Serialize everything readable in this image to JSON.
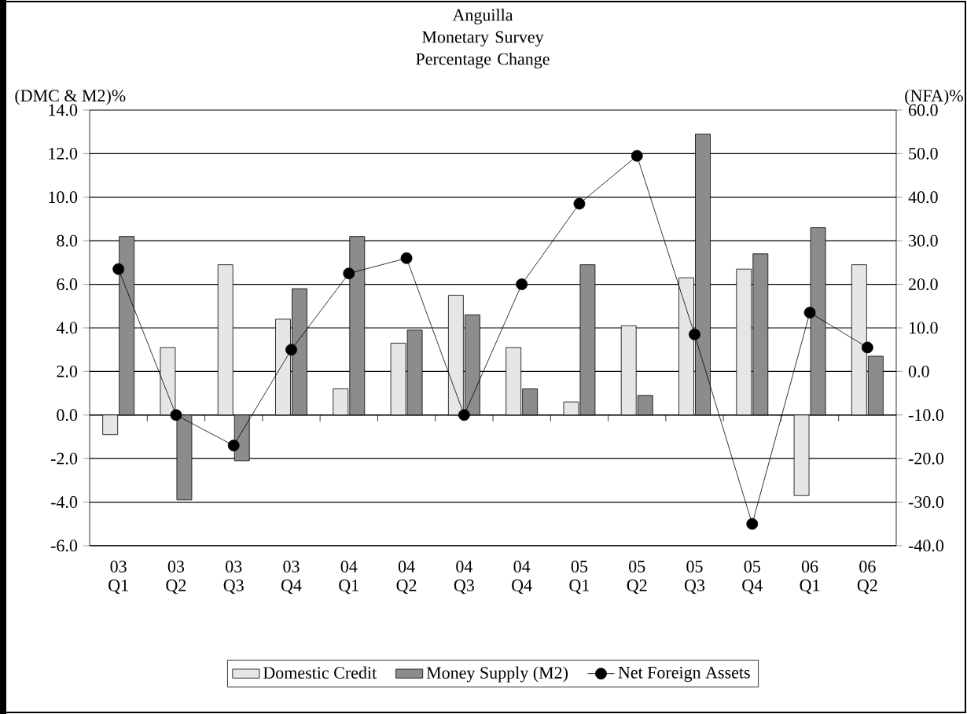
{
  "chart_data": {
    "type": "bar",
    "title": "Anguilla",
    "subtitle": "Monetary Survey Percentage Change",
    "ylabel": "(DMC & M2)%",
    "y2label": "(NFA)%",
    "categories": [
      "03 Q1",
      "03 Q2",
      "03 Q3",
      "03 Q4",
      "04 Q1",
      "04 Q2",
      "04 Q3",
      "04 Q4",
      "05 Q1",
      "05 Q2",
      "05 Q3",
      "05 Q4",
      "06 Q1",
      "06 Q2"
    ],
    "series": [
      {
        "name": "Domestic Credit",
        "color": "#e6e6e6",
        "values": [
          -0.9,
          3.1,
          6.9,
          4.4,
          1.2,
          3.3,
          5.5,
          3.1,
          0.6,
          4.1,
          6.3,
          6.7,
          -3.7,
          6.9
        ]
      },
      {
        "name": "Money Supply (M2)",
        "color": "#8c8c8c",
        "values": [
          8.2,
          -3.9,
          -2.1,
          5.8,
          8.2,
          3.9,
          4.6,
          1.2,
          6.9,
          0.9,
          12.9,
          7.4,
          8.6,
          2.7
        ]
      },
      {
        "name": "Net Foreign Assets",
        "type": "line",
        "axis": "y2",
        "color": "#000000",
        "values": [
          23.5,
          -10,
          -17,
          5,
          22.5,
          26,
          -10,
          20,
          38.5,
          49.5,
          8.5,
          -35,
          13.5,
          5.5
        ]
      }
    ],
    "ylim": [
      -6,
      14
    ],
    "yticks": [
      {
        "value": -6,
        "label": "-6.0"
      },
      {
        "value": -4,
        "label": "-4.0"
      },
      {
        "value": -2,
        "label": "-2.0"
      },
      {
        "value": 0,
        "label": "0.0"
      },
      {
        "value": 2,
        "label": "2.0"
      },
      {
        "value": 4,
        "label": "4.0"
      },
      {
        "value": 6,
        "label": "6.0"
      },
      {
        "value": 8,
        "label": "8.0"
      },
      {
        "value": 10,
        "label": "10.0"
      },
      {
        "value": 12,
        "label": "12.0"
      },
      {
        "value": 14,
        "label": "14.0"
      }
    ],
    "y2lim": [
      -40,
      60
    ],
    "y2ticks": [
      {
        "value": -40,
        "label": "-40.0"
      },
      {
        "value": -30,
        "label": "-30.0"
      },
      {
        "value": -20,
        "label": "-20.0"
      },
      {
        "value": -10,
        "label": "-10.0"
      },
      {
        "value": 0,
        "label": "0.0"
      },
      {
        "value": 10,
        "label": "10.0"
      },
      {
        "value": 20,
        "label": "20.0"
      },
      {
        "value": 30,
        "label": "30.0"
      },
      {
        "value": 40,
        "label": "40.0"
      },
      {
        "value": 50,
        "label": "50.0"
      },
      {
        "value": 60,
        "label": "60.0"
      }
    ],
    "grid": "y",
    "legend": "bottom",
    "marker": "circle",
    "line_style": "solid"
  }
}
